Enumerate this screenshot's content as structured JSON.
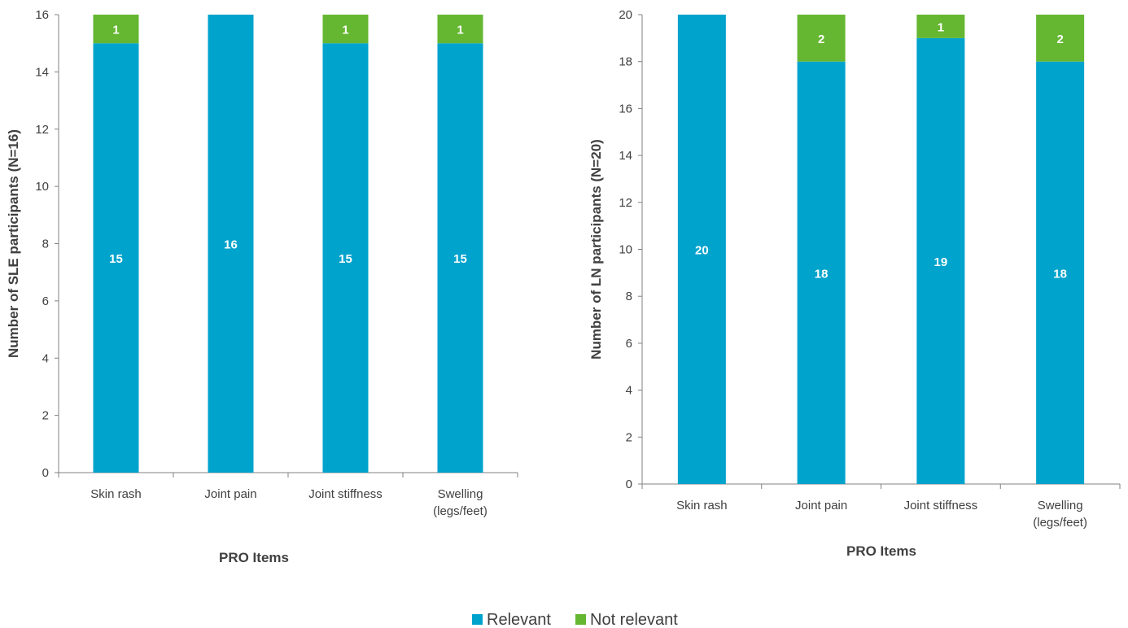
{
  "colors": {
    "relevant": "#00a3cc",
    "not_relevant": "#65b631",
    "axis": "#808080",
    "text": "#404040"
  },
  "legend": [
    {
      "key": "relevant",
      "label": "Relevant"
    },
    {
      "key": "not_relevant",
      "label": "Not relevant"
    }
  ],
  "chart_data": [
    {
      "type": "bar",
      "stacked": true,
      "categories": [
        [
          "Skin rash"
        ],
        [
          "Joint pain"
        ],
        [
          "Joint stiffness"
        ],
        [
          "Swelling",
          "(legs/feet)"
        ]
      ],
      "series": [
        {
          "name": "Relevant",
          "key": "relevant",
          "values": [
            15,
            16,
            15,
            15
          ]
        },
        {
          "name": "Not relevant",
          "key": "not_relevant",
          "values": [
            1,
            0,
            1,
            1
          ]
        }
      ],
      "xlabel": "PRO Items",
      "ylabel": "Number of SLE participants (N=16)",
      "ylim": [
        0,
        16
      ],
      "yticks": [
        0,
        2,
        4,
        6,
        8,
        10,
        12,
        14,
        16
      ],
      "grid": false,
      "legend": "bottom"
    },
    {
      "type": "bar",
      "stacked": true,
      "categories": [
        [
          "Skin rash"
        ],
        [
          "Joint pain"
        ],
        [
          "Joint stiffness"
        ],
        [
          "Swelling",
          "(legs/feet)"
        ]
      ],
      "series": [
        {
          "name": "Relevant",
          "key": "relevant",
          "values": [
            20,
            18,
            19,
            18
          ]
        },
        {
          "name": "Not relevant",
          "key": "not_relevant",
          "values": [
            0,
            2,
            1,
            2
          ]
        }
      ],
      "xlabel": "PRO Items",
      "ylabel": "Number of LN participants (N=20)",
      "ylim": [
        0,
        20
      ],
      "yticks": [
        0,
        2,
        4,
        6,
        8,
        10,
        12,
        14,
        16,
        18,
        20
      ],
      "grid": false,
      "legend": "bottom"
    }
  ]
}
